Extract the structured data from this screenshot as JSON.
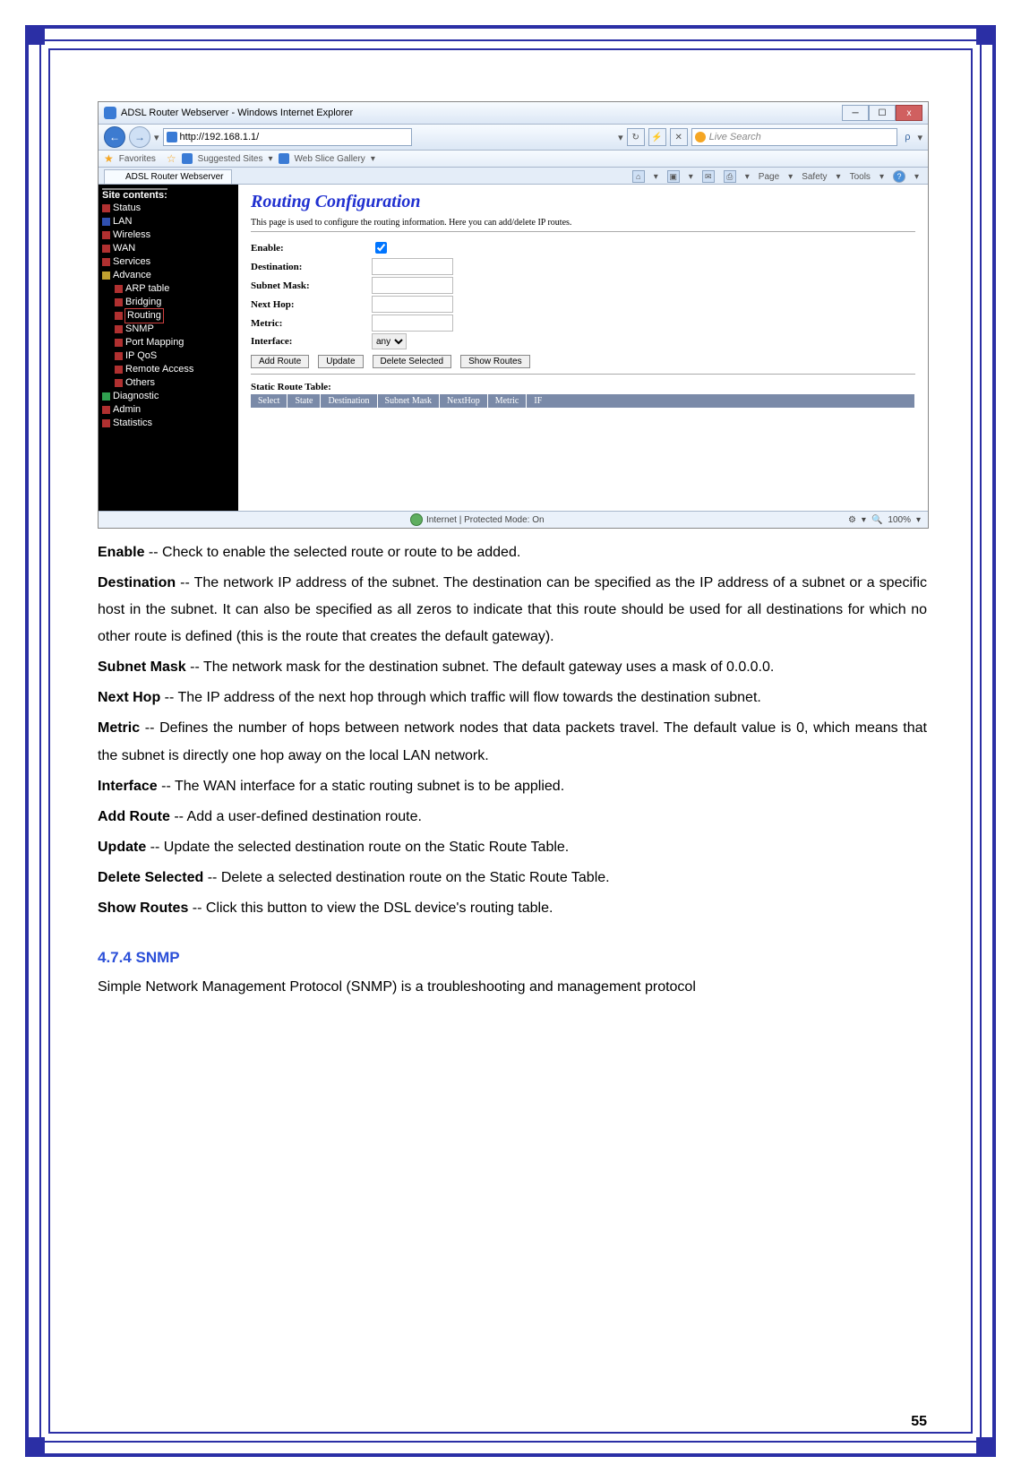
{
  "page": {
    "number": "55"
  },
  "border_color": "#2b2fa5",
  "screenshot": {
    "window_title": "ADSL Router Webserver - Windows Internet Explorer",
    "url": "http://192.168.1.1/",
    "search_placeholder": "Live Search",
    "favorites_label": "Favorites",
    "suggested_sites": "Suggested Sites",
    "web_slice": "Web Slice Gallery",
    "tab_title": "ADSL Router Webserver",
    "menu": {
      "page": "Page",
      "safety": "Safety",
      "tools": "Tools"
    },
    "sidebar": {
      "header": "Site contents:",
      "items": [
        {
          "label": "Status",
          "level": 1,
          "color": "r"
        },
        {
          "label": "LAN",
          "level": 1,
          "color": "b"
        },
        {
          "label": "Wireless",
          "level": 1,
          "color": "r"
        },
        {
          "label": "WAN",
          "level": 1,
          "color": "r"
        },
        {
          "label": "Services",
          "level": 1,
          "color": "r"
        },
        {
          "label": "Advance",
          "level": 1,
          "color": "y"
        },
        {
          "label": "ARP table",
          "level": 2,
          "color": "r"
        },
        {
          "label": "Bridging",
          "level": 2,
          "color": "r"
        },
        {
          "label": "Routing",
          "level": 2,
          "color": "r",
          "selected": true
        },
        {
          "label": "SNMP",
          "level": 2,
          "color": "r"
        },
        {
          "label": "Port Mapping",
          "level": 2,
          "color": "r"
        },
        {
          "label": "IP QoS",
          "level": 2,
          "color": "r"
        },
        {
          "label": "Remote Access",
          "level": 2,
          "color": "r"
        },
        {
          "label": "Others",
          "level": 2,
          "color": "r"
        },
        {
          "label": "Diagnostic",
          "level": 1,
          "color": "g"
        },
        {
          "label": "Admin",
          "level": 1,
          "color": "r"
        },
        {
          "label": "Statistics",
          "level": 1,
          "color": "r"
        }
      ]
    },
    "main": {
      "title": "Routing Configuration",
      "desc": "This page is used to configure the routing information. Here you can add/delete IP routes.",
      "fields": {
        "enable": "Enable:",
        "destination": "Destination:",
        "subnet_mask": "Subnet Mask:",
        "next_hop": "Next Hop:",
        "metric": "Metric:",
        "interface": "Interface:",
        "interface_value": "any"
      },
      "buttons": {
        "add": "Add Route",
        "update": "Update",
        "delete": "Delete Selected",
        "show": "Show Routes"
      },
      "table_title": "Static Route Table:",
      "table_headers": [
        "Select",
        "State",
        "Destination",
        "Subnet Mask",
        "NextHop",
        "Metric",
        "IF"
      ]
    },
    "status": {
      "text": "Internet | Protected Mode: On",
      "zoom": "100%"
    }
  },
  "doc": {
    "p1": {
      "term": "Enable",
      "text": " -- Check to enable the selected route or route to be added."
    },
    "p2": {
      "term": "Destination",
      "text": " -- The network IP address of the subnet. The destination can be specified as the IP address of a subnet or a specific host in the subnet. It can also be specified as all zeros to indicate that this route should be used for all destinations for which no other route is defined (this is the route that creates the default gateway)."
    },
    "p3": {
      "term": "Subnet Mask",
      "text": " -- The network mask for the destination subnet. The default gateway uses a mask of 0.0.0.0."
    },
    "p4": {
      "term": "Next Hop",
      "text": " -- The IP address of the next hop through which traffic will flow towards the destination subnet."
    },
    "p5": {
      "term": "Metric",
      "text": " -- Defines the number of hops between network nodes that data packets travel. The default value is 0, which means that the subnet is directly one hop away on the local LAN network."
    },
    "p6": {
      "term": "Interface",
      "text": " -- The WAN interface for a static routing subnet is to be applied."
    },
    "p7": {
      "term": "Add Route",
      "text": " -- Add a user-defined destination route."
    },
    "p8": {
      "term": "Update",
      "text": " -- Update the selected destination route on the Static Route Table."
    },
    "p9": {
      "term": "Delete Selected",
      "text": " -- Delete a selected destination route on the Static Route Table."
    },
    "p10": {
      "term": "Show Routes",
      "text": " -- Click this button to view the DSL device's routing table."
    },
    "section": "4.7.4 SNMP",
    "section_text": "Simple Network Management Protocol (SNMP) is a troubleshooting and management protocol"
  }
}
